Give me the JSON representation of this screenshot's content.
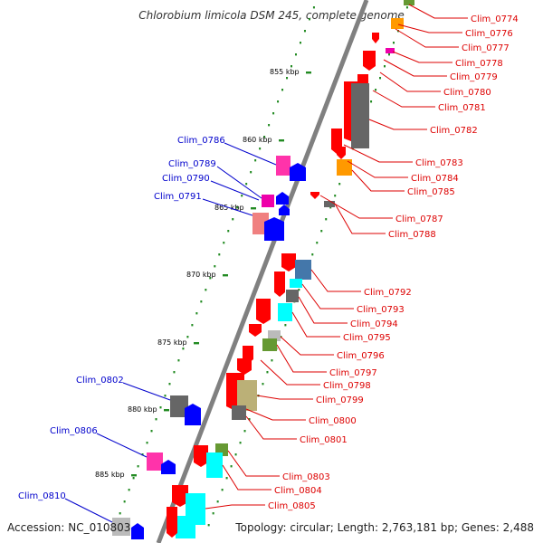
{
  "title": "Chlorobium limicola DSM 245, complete genome",
  "accession": "Accession: NC_010803",
  "summary": "Topology: circular; Length: 2,763,181 bp; Genes: 2,488",
  "colors": {
    "label_forward": "#0000cc",
    "label_reverse": "#dd0000",
    "backbone": "#808080",
    "tick": "#228b22",
    "red": "#ff0000",
    "blue": "#0000ff",
    "gray": "#666666",
    "orange": "#ff9900",
    "pink": "#ff33aa",
    "magenta": "#ee00aa",
    "salmon": "#f08080",
    "steelblue": "#4477aa",
    "cyan": "#00ffff",
    "olive": "#669933",
    "khaki": "#bbb077",
    "silver": "#bbbbbb"
  },
  "kbp_labels": [
    "855 kbp",
    "860 kbp",
    "865 kbp",
    "870 kbp",
    "875 kbp",
    "880 kbp",
    "885 kbp"
  ],
  "forward_labels": [
    "Clim_0786",
    "Clim_0789",
    "Clim_0790",
    "Clim_0791",
    "Clim_0802",
    "Clim_0806",
    "Clim_0810"
  ],
  "reverse_labels": [
    "Clim_0774",
    "Clim_0776",
    "Clim_0777",
    "Clim_0778",
    "Clim_0779",
    "Clim_0780",
    "Clim_0781",
    "Clim_0782",
    "Clim_0783",
    "Clim_0784",
    "Clim_0785",
    "Clim_0787",
    "Clim_0788",
    "Clim_0792",
    "Clim_0793",
    "Clim_0794",
    "Clim_0795",
    "Clim_0796",
    "Clim_0797",
    "Clim_0798",
    "Clim_0799",
    "Clim_0800",
    "Clim_0801",
    "Clim_0803",
    "Clim_0804",
    "Clim_0805"
  ]
}
